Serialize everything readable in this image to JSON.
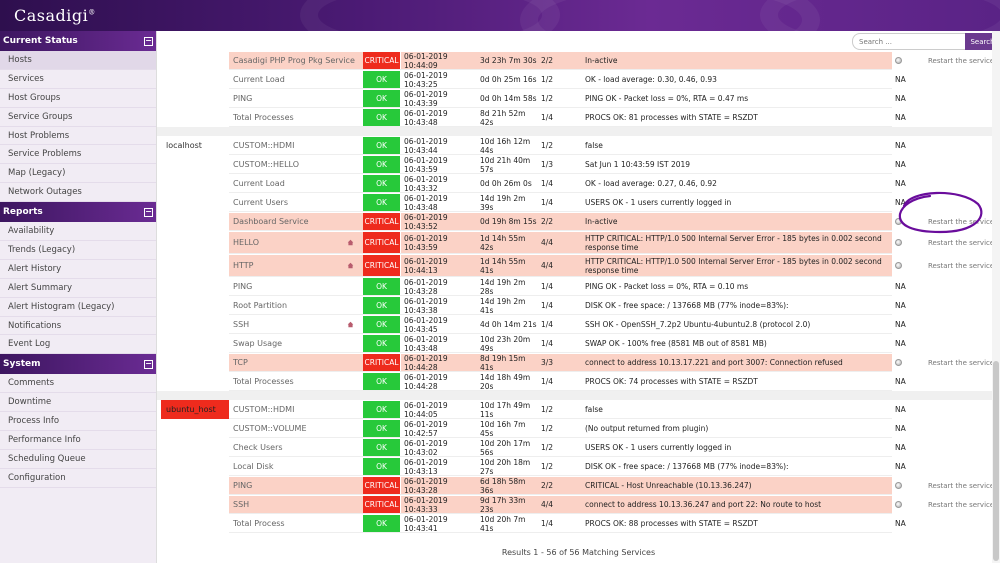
{
  "header": {
    "logo": "Casadigi",
    "logo_mark": "®"
  },
  "search": {
    "placeholder": "Search ...",
    "button": "Search"
  },
  "sidebar": {
    "sections": [
      {
        "title": "Current Status",
        "toggle": "−",
        "items": [
          "Hosts",
          "Services",
          "Host Groups",
          "Service Groups",
          "Host Problems",
          "Service Problems",
          "Map (Legacy)",
          "Network Outages"
        ]
      },
      {
        "title": "Reports",
        "toggle": "−",
        "items": [
          "Availability",
          "Trends (Legacy)",
          "Alert History",
          "Alert Summary",
          "Alert Histogram (Legacy)",
          "Notifications",
          "Event Log"
        ]
      },
      {
        "title": "System",
        "toggle": "−",
        "items": [
          "Comments",
          "Downtime",
          "Process Info",
          "Performance Info",
          "Scheduling Queue",
          "Configuration"
        ]
      }
    ],
    "active_item": "Hosts"
  },
  "services": {
    "rows": [
      {
        "host": "",
        "service": "Casadigi PHP Prog Pkg Service",
        "status": "CRITICAL",
        "last_check": "06-01-2019 10:44:09",
        "duration": "3d 23h 7m 30s",
        "attempt": "2/2",
        "info": "In-active",
        "na": "",
        "action": "Restart the service",
        "icon": ""
      },
      {
        "host": "",
        "service": "Current Load",
        "status": "OK",
        "last_check": "06-01-2019 10:43:25",
        "duration": "0d 0h 25m 16s",
        "attempt": "1/2",
        "info": "OK - load average: 0.30, 0.46, 0.93",
        "na": "NA",
        "action": "",
        "icon": ""
      },
      {
        "host": "",
        "service": "PING",
        "status": "OK",
        "last_check": "06-01-2019 10:43:39",
        "duration": "0d 0h 14m 58s",
        "attempt": "1/2",
        "info": "PING OK - Packet loss = 0%, RTA = 0.47 ms",
        "na": "NA",
        "action": "",
        "icon": ""
      },
      {
        "host": "",
        "service": "Total Processes",
        "status": "OK",
        "last_check": "06-01-2019 10:43:48",
        "duration": "8d 21h 52m 42s",
        "attempt": "1/4",
        "info": "PROCS OK: 81 processes with STATE = RSZDT",
        "na": "NA",
        "action": "",
        "icon": ""
      },
      {
        "host": "localhost",
        "service": "CUSTOM::HDMI",
        "status": "OK",
        "last_check": "06-01-2019 10:43:44",
        "duration": "10d 16h 12m 44s",
        "attempt": "1/2",
        "info": "false",
        "na": "NA",
        "action": "",
        "icon": ""
      },
      {
        "host": "",
        "service": "CUSTOM::HELLO",
        "status": "OK",
        "last_check": "06-01-2019 10:43:59",
        "duration": "10d 21h 40m 57s",
        "attempt": "1/3",
        "info": "Sat Jun 1 10:43:59 IST 2019",
        "na": "NA",
        "action": "",
        "icon": ""
      },
      {
        "host": "",
        "service": "Current Load",
        "status": "OK",
        "last_check": "06-01-2019 10:43:32",
        "duration": "0d 0h 26m 0s",
        "attempt": "1/4",
        "info": "OK - load average: 0.27, 0.46, 0.92",
        "na": "NA",
        "action": "",
        "icon": ""
      },
      {
        "host": "",
        "service": "Current Users",
        "status": "OK",
        "last_check": "06-01-2019 10:43:48",
        "duration": "14d 19h 2m 39s",
        "attempt": "1/4",
        "info": "USERS OK - 1 users currently logged in",
        "na": "NA",
        "action": "",
        "icon": ""
      },
      {
        "host": "",
        "service": "Dashboard Service",
        "status": "CRITICAL",
        "last_check": "06-01-2019 10:43:52",
        "duration": "0d 19h 8m 15s",
        "attempt": "2/2",
        "info": "In-active",
        "na": "",
        "action": "Restart the service",
        "icon": ""
      },
      {
        "host": "",
        "service": "HELLO",
        "status": "CRITICAL",
        "last_check": "06-01-2019 10:43:59",
        "duration": "1d 14h 55m 42s",
        "attempt": "4/4",
        "info": "HTTP CRITICAL: HTTP/1.0 500 Internal Server Error - 185 bytes in 0.002 second response time",
        "na": "",
        "action": "Restart the service",
        "icon": "house"
      },
      {
        "host": "",
        "service": "HTTP",
        "status": "CRITICAL",
        "last_check": "06-01-2019 10:44:13",
        "duration": "1d 14h 55m 41s",
        "attempt": "4/4",
        "info": "HTTP CRITICAL: HTTP/1.0 500 Internal Server Error - 185 bytes in 0.002 second response time",
        "na": "",
        "action": "Restart the service",
        "icon": "house"
      },
      {
        "host": "",
        "service": "PING",
        "status": "OK",
        "last_check": "06-01-2019 10:43:28",
        "duration": "14d 19h 2m 28s",
        "attempt": "1/4",
        "info": "PING OK - Packet loss = 0%, RTA = 0.10 ms",
        "na": "NA",
        "action": "",
        "icon": ""
      },
      {
        "host": "",
        "service": "Root Partition",
        "status": "OK",
        "last_check": "06-01-2019 10:43:38",
        "duration": "14d 19h 2m 41s",
        "attempt": "1/4",
        "info": "DISK OK - free space: / 137668 MB (77% inode=83%):",
        "na": "NA",
        "action": "",
        "icon": ""
      },
      {
        "host": "",
        "service": "SSH",
        "status": "OK",
        "last_check": "06-01-2019 10:43:45",
        "duration": "4d 0h 14m 21s",
        "attempt": "1/4",
        "info": "SSH OK - OpenSSH_7.2p2 Ubuntu-4ubuntu2.8 (protocol 2.0)",
        "na": "NA",
        "action": "",
        "icon": "house"
      },
      {
        "host": "",
        "service": "Swap Usage",
        "status": "OK",
        "last_check": "06-01-2019 10:43:48",
        "duration": "10d 23h 20m 49s",
        "attempt": "1/4",
        "info": "SWAP OK - 100% free (8581 MB out of 8581 MB)",
        "na": "NA",
        "action": "",
        "icon": ""
      },
      {
        "host": "",
        "service": "TCP",
        "status": "CRITICAL",
        "last_check": "06-01-2019 10:44:28",
        "duration": "8d 19h 15m 41s",
        "attempt": "3/3",
        "info": "connect to address 10.13.17.221 and port 3007: Connection refused",
        "na": "",
        "action": "Restart the service",
        "icon": ""
      },
      {
        "host": "",
        "service": "Total Processes",
        "status": "OK",
        "last_check": "06-01-2019 10:44:28",
        "duration": "14d 18h 49m 20s",
        "attempt": "1/4",
        "info": "PROCS OK: 74 processes with STATE = RSZDT",
        "na": "NA",
        "action": "",
        "icon": ""
      },
      {
        "host": "ubuntu_host",
        "service": "CUSTOM::HDMI",
        "status": "OK",
        "last_check": "06-01-2019 10:44:05",
        "duration": "10d 17h 49m 11s",
        "attempt": "1/2",
        "info": "false",
        "na": "NA",
        "action": "",
        "icon": ""
      },
      {
        "host": "",
        "service": "CUSTOM::VOLUME",
        "status": "OK",
        "last_check": "06-01-2019 10:42:57",
        "duration": "10d 16h 7m 45s",
        "attempt": "1/2",
        "info": "(No output returned from plugin)",
        "na": "NA",
        "action": "",
        "icon": ""
      },
      {
        "host": "",
        "service": "Check Users",
        "status": "OK",
        "last_check": "06-01-2019 10:43:02",
        "duration": "10d 20h 17m 56s",
        "attempt": "1/2",
        "info": "USERS OK - 1 users currently logged in",
        "na": "NA",
        "action": "",
        "icon": ""
      },
      {
        "host": "",
        "service": "Local Disk",
        "status": "OK",
        "last_check": "06-01-2019 10:43:13",
        "duration": "10d 20h 18m 27s",
        "attempt": "1/2",
        "info": "DISK OK - free space: / 137668 MB (77% inode=83%):",
        "na": "NA",
        "action": "",
        "icon": ""
      },
      {
        "host": "",
        "service": "PING",
        "status": "CRITICAL",
        "last_check": "06-01-2019 10:43:28",
        "duration": "6d 18h 58m 36s",
        "attempt": "2/2",
        "info": "CRITICAL - Host Unreachable (10.13.36.247)",
        "na": "",
        "action": "Restart the service",
        "icon": ""
      },
      {
        "host": "",
        "service": "SSH",
        "status": "CRITICAL",
        "last_check": "06-01-2019 10:43:33",
        "duration": "9d 17h 33m 23s",
        "attempt": "4/4",
        "info": "connect to address 10.13.36.247 and port 22: No route to host",
        "na": "",
        "action": "Restart the service",
        "icon": ""
      },
      {
        "host": "",
        "service": "Total Process",
        "status": "OK",
        "last_check": "06-01-2019 10:43:41",
        "duration": "10d 20h 7m 41s",
        "attempt": "1/4",
        "info": "PROCS OK: 88 processes with STATE = RSZDT",
        "na": "NA",
        "action": "",
        "icon": ""
      }
    ]
  },
  "footer": {
    "results": "Results 1 - 56 of 56 Matching Services"
  },
  "colors": {
    "ok": "#27c93a",
    "critical": "#ee2b1d",
    "critical_row": "#fbd2c6",
    "accent": "#6b3a8f"
  }
}
